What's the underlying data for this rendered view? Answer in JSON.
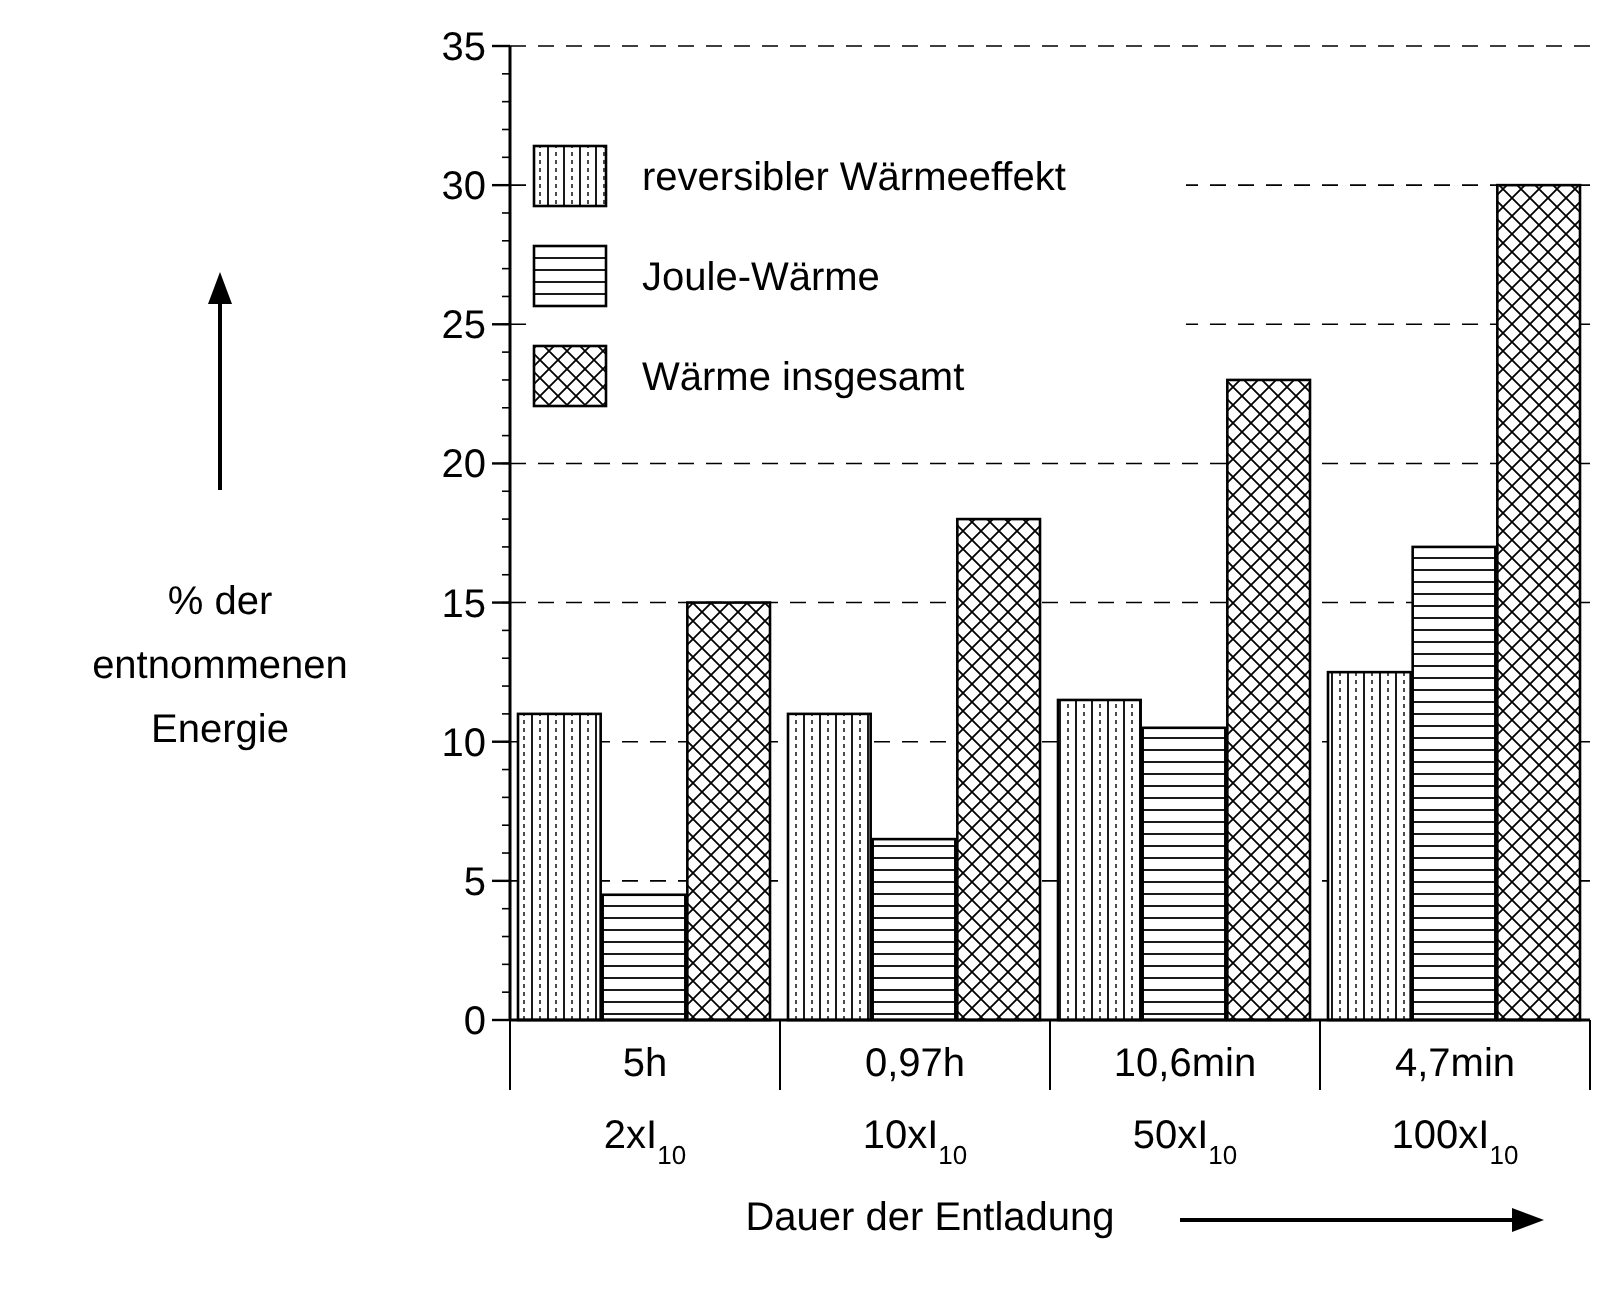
{
  "chart_data": {
    "type": "bar",
    "ylabel": "% der\nentnommenen\nEnergie",
    "xlabel": "Dauer der Entladung",
    "categories": [
      "5h\n2xI$_{10}$",
      "0,97h\n10xI$_{10}$",
      "10,6min\n50xI$_{10}$",
      "4,7min\n100xI$_{10}$"
    ],
    "series": [
      {
        "name": "reversibler Wärmeeffekt",
        "color": "#000000",
        "values": [
          11,
          11,
          11.5,
          12.5
        ]
      },
      {
        "name": "Joule-Wärme",
        "color": "#000000",
        "values": [
          4.5,
          6.5,
          10.5,
          17
        ]
      },
      {
        "name": "Wärme insgesamt",
        "color": "#000000",
        "values": [
          15,
          18,
          23,
          30
        ]
      }
    ],
    "ylim": [
      0,
      35
    ],
    "yticks": [
      0,
      5,
      10,
      15,
      20,
      25,
      30,
      35
    ],
    "grid": "y",
    "legend": "top left"
  }
}
